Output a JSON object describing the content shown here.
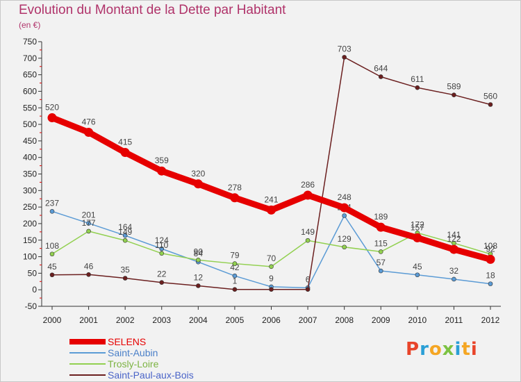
{
  "title": "Evolution du Montant de la Dette par Habitant",
  "subtitle": "(en €)",
  "logo_text": "Proxiti",
  "logo_colors": [
    "#e8442a",
    "#2a9fd6",
    "#f5a623",
    "#7cc242",
    "#2a9fd6",
    "#f5a623",
    "#e8442a"
  ],
  "chart_data": {
    "type": "line",
    "title": "Evolution du Montant de la Dette par Habitant",
    "subtitle": "(en €)",
    "xlabel": "",
    "ylabel": "",
    "categories": [
      "2000",
      "2001",
      "2002",
      "2003",
      "2004",
      "2005",
      "2006",
      "2007",
      "2008",
      "2009",
      "2010",
      "2011",
      "2012"
    ],
    "ylim": [
      -50,
      750
    ],
    "yticks": [
      -50,
      0,
      50,
      100,
      150,
      200,
      250,
      300,
      350,
      400,
      450,
      500,
      550,
      600,
      650,
      700,
      750
    ],
    "grid": false,
    "legend_position": "bottom-left",
    "series": [
      {
        "name": "SELENS",
        "color": "#e60000",
        "emphasis": true,
        "values": [
          520,
          476,
          415,
          359,
          320,
          278,
          241,
          286,
          248,
          189,
          157,
          122,
          92
        ]
      },
      {
        "name": "Saint-Aubin",
        "color": "#5b9bd5",
        "emphasis": false,
        "values": [
          237,
          201,
          164,
          124,
          84,
          42,
          9,
          6,
          224,
          57,
          45,
          32,
          18
        ]
      },
      {
        "name": "Trosly-Loire",
        "color": "#92d050",
        "emphasis": false,
        "values": [
          108,
          177,
          149,
          110,
          90,
          79,
          70,
          149,
          129,
          115,
          172,
          141,
          108
        ]
      },
      {
        "name": "Saint-Paul-aux-Bois",
        "color": "#6b1f1f",
        "emphasis": false,
        "values": [
          45,
          46,
          35,
          22,
          12,
          1,
          1,
          1,
          703,
          644,
          611,
          589,
          560
        ],
        "labels": [
          "45",
          "46",
          "35",
          "22",
          "12",
          "1",
          "",
          "",
          "703",
          "644",
          "611",
          "589",
          "560"
        ]
      }
    ]
  }
}
